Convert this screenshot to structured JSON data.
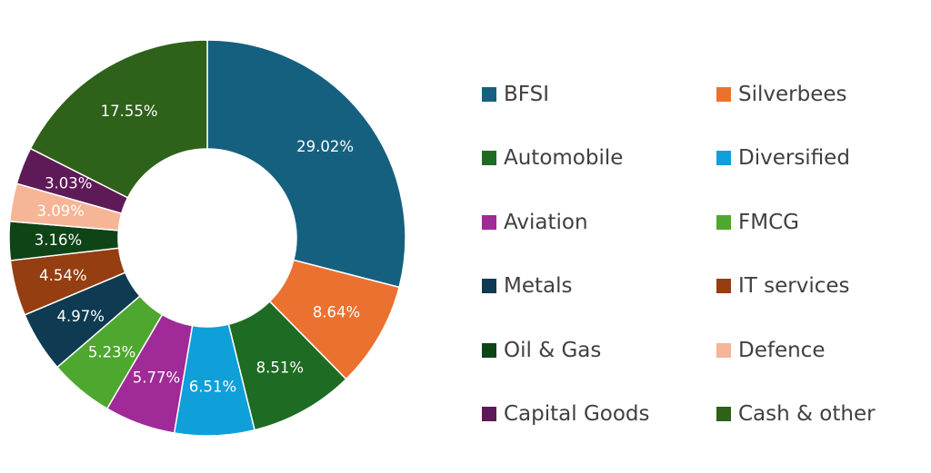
{
  "chart_data": {
    "type": "pie",
    "donut": true,
    "title": "",
    "legend_position": "right",
    "categories": [
      "BFSI",
      "Silverbees",
      "Automobile",
      "Diversified",
      "Aviation",
      "FMCG",
      "Metals",
      "IT services",
      "Oil & Gas",
      "Defence",
      "Capital Goods",
      "Cash & other"
    ],
    "values": [
      29.02,
      8.64,
      8.51,
      6.51,
      5.77,
      5.23,
      4.97,
      4.54,
      3.16,
      3.09,
      3.03,
      17.55
    ],
    "labels": [
      "29.02%",
      "8.64%",
      "8.51%",
      "6.51%",
      "5.77%",
      "5.23%",
      "4.97%",
      "4.54%",
      "3.16%",
      "3.09%",
      "3.03%",
      "17.55%"
    ],
    "colors": [
      "#16607f",
      "#eb7131",
      "#1e6b23",
      "#0f9fd9",
      "#a02a98",
      "#4ea72e",
      "#0e3a52",
      "#953e12",
      "#0f4417",
      "#f5b596",
      "#5e1a57",
      "#2e6119"
    ]
  }
}
